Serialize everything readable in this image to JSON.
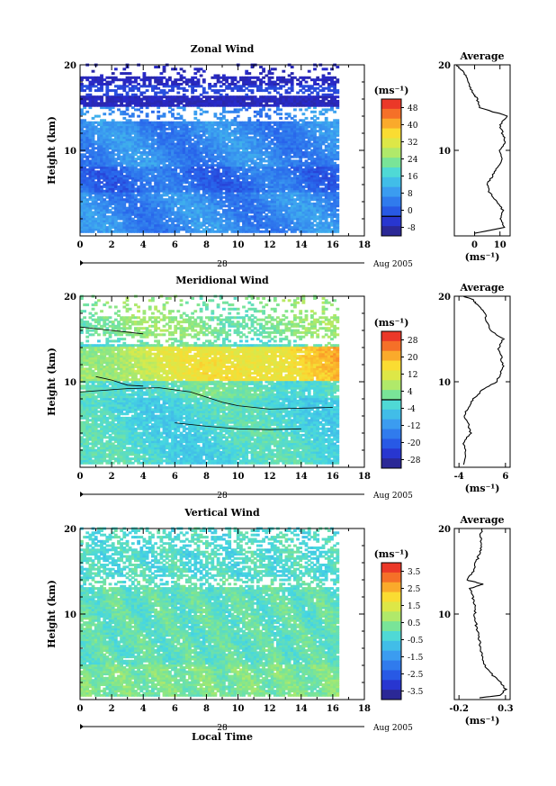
{
  "chart_data": [
    {
      "type": "heatmap",
      "title": "Zonal Wind",
      "ylabel": "Height (km)",
      "xlim": [
        0,
        18
      ],
      "ylim": [
        0,
        20
      ],
      "x_ticks": [
        "0",
        "2",
        "4",
        "6",
        "8",
        "10",
        "12",
        "14",
        "16",
        "18"
      ],
      "y_ticks": [
        "20",
        "10"
      ],
      "date_label": "28",
      "date_suffix": "Aug 2005",
      "colorbar": {
        "unit": "(ms⁻¹)",
        "ticks": [
          "48",
          "40",
          "32",
          "24",
          "16",
          "8",
          "0",
          "-8"
        ],
        "range": [
          -8,
          48
        ],
        "zero_level": 0
      },
      "profile": {
        "title": "Average",
        "x_ticks": [
          "0",
          "10"
        ],
        "x_unit": "(ms⁻¹)",
        "xlim": [
          -8,
          14
        ],
        "y_ticks": [
          "20",
          "10"
        ],
        "points": [
          [
            0,
            0.3
          ],
          [
            12,
            1
          ],
          [
            10,
            2
          ],
          [
            11,
            3
          ],
          [
            9,
            4
          ],
          [
            6,
            5
          ],
          [
            5,
            6
          ],
          [
            7,
            7
          ],
          [
            9,
            8
          ],
          [
            11,
            9
          ],
          [
            10,
            10
          ],
          [
            12,
            11
          ],
          [
            11,
            12
          ],
          [
            10,
            13
          ],
          [
            13,
            14
          ],
          [
            2,
            15
          ],
          [
            1,
            16
          ],
          [
            0,
            16.5
          ],
          [
            -2,
            17.5
          ],
          [
            -3,
            18.5
          ],
          [
            -5,
            19.3
          ],
          [
            -7,
            20
          ]
        ]
      }
    },
    {
      "type": "heatmap",
      "title": "Meridional Wind",
      "ylabel": "Height (km)",
      "xlim": [
        0,
        18
      ],
      "ylim": [
        0,
        20
      ],
      "x_ticks": [
        "0",
        "2",
        "4",
        "6",
        "8",
        "10",
        "12",
        "14",
        "16",
        "18"
      ],
      "y_ticks": [
        "20",
        "10"
      ],
      "date_label": "28",
      "date_suffix": "Aug 2005",
      "colorbar": {
        "unit": "(ms⁻¹)",
        "ticks": [
          "28",
          "20",
          "12",
          "4",
          "-4",
          "-12",
          "-20",
          "-28"
        ],
        "range": [
          -28,
          28
        ],
        "zero_level": 0
      },
      "profile": {
        "title": "Average",
        "x_ticks": [
          "-4",
          "6"
        ],
        "x_unit": "(ms⁻¹)",
        "xlim": [
          -5,
          7
        ],
        "y_ticks": [
          "20",
          "10"
        ],
        "points": [
          [
            -3,
            0.3
          ],
          [
            -2.5,
            1.5
          ],
          [
            -3,
            3
          ],
          [
            -1.5,
            4
          ],
          [
            -2,
            5
          ],
          [
            -3,
            6
          ],
          [
            -2,
            7
          ],
          [
            -1,
            8
          ],
          [
            1,
            9
          ],
          [
            4,
            10
          ],
          [
            5,
            11
          ],
          [
            5.5,
            12
          ],
          [
            5,
            13
          ],
          [
            4.5,
            14
          ],
          [
            5.5,
            15
          ],
          [
            3,
            16
          ],
          [
            2,
            17
          ],
          [
            1.5,
            18
          ],
          [
            0,
            19
          ],
          [
            -1,
            19.6
          ],
          [
            -3,
            20
          ]
        ]
      }
    },
    {
      "type": "heatmap",
      "title": "Vertical Wind",
      "ylabel": "Height (km)",
      "xlabel": "Local Time",
      "xlim": [
        0,
        18
      ],
      "ylim": [
        0,
        20
      ],
      "x_ticks": [
        "0",
        "2",
        "4",
        "6",
        "8",
        "10",
        "12",
        "14",
        "16",
        "18"
      ],
      "y_ticks": [
        "20",
        "10"
      ],
      "date_label": "28",
      "date_suffix": "Aug 2005",
      "colorbar": {
        "unit": "(ms⁻¹)",
        "ticks": [
          "3.5",
          "2.5",
          "1.5",
          "0.5",
          "-0.5",
          "-1.5",
          "-2.5",
          "-3.5"
        ],
        "range": [
          -3.5,
          3.5
        ],
        "zero_level": null
      },
      "profile": {
        "title": "Average",
        "x_ticks": [
          "-0.2",
          "0.3"
        ],
        "x_unit": "(ms⁻¹)",
        "xlim": [
          -0.25,
          0.35
        ],
        "y_ticks": [
          "20",
          "10"
        ],
        "points": [
          [
            0.02,
            0.2
          ],
          [
            0.25,
            0.5
          ],
          [
            0.3,
            1.2
          ],
          [
            0.25,
            2
          ],
          [
            0.15,
            3
          ],
          [
            0.08,
            4
          ],
          [
            0.05,
            5
          ],
          [
            0.03,
            6
          ],
          [
            0.02,
            7
          ],
          [
            0.0,
            8
          ],
          [
            -0.02,
            9
          ],
          [
            -0.03,
            10
          ],
          [
            -0.03,
            11
          ],
          [
            -0.05,
            12
          ],
          [
            -0.08,
            13
          ],
          [
            0.06,
            13.5
          ],
          [
            -0.12,
            14
          ],
          [
            -0.05,
            15
          ],
          [
            -0.02,
            16
          ],
          [
            0.02,
            17
          ],
          [
            0.04,
            18
          ],
          [
            0.03,
            19
          ],
          [
            0.05,
            20
          ]
        ]
      }
    }
  ]
}
